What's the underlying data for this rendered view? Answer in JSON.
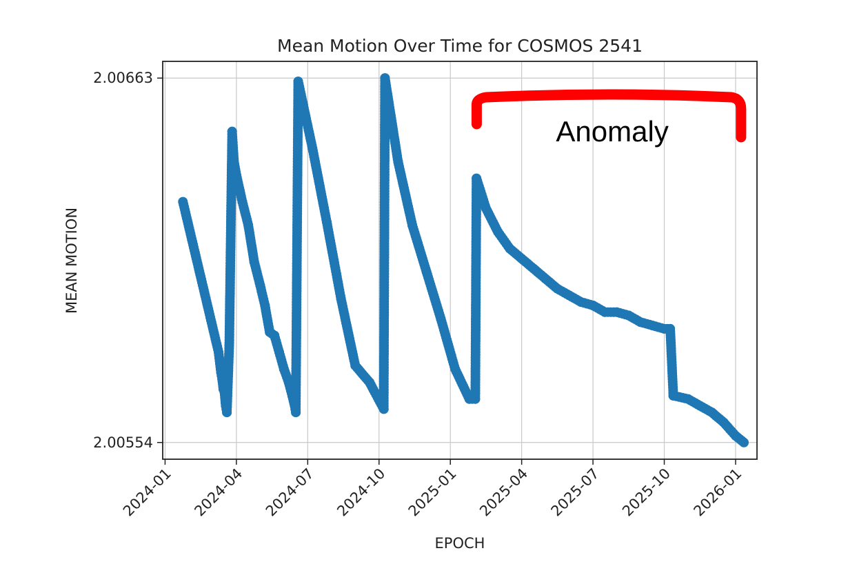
{
  "chart_data": {
    "type": "line",
    "title": "Mean Motion Over Time for COSMOS 2541",
    "xlabel": "EPOCH",
    "ylabel": "MEAN MOTION",
    "x_ticks": [
      "2024-01",
      "2024-04",
      "2024-07",
      "2024-10",
      "2025-01",
      "2025-04",
      "2025-07",
      "2025-10",
      "2026-01"
    ],
    "x_tick_values": [
      0,
      3,
      6,
      9,
      12,
      15,
      18,
      21,
      24
    ],
    "xlim": [
      -0.1,
      24.9
    ],
    "y_ticks": [
      "2.00663",
      "2.00554"
    ],
    "y_tick_values": [
      2.00663,
      2.00554
    ],
    "ylim": [
      2.00549,
      2.00668
    ],
    "grid": true,
    "marker": "circle",
    "series": [
      {
        "name": "MEAN MOTION",
        "color": "#1f77b4",
        "segments": [
          [
            [
              0.75,
              2.00626
            ],
            [
              2.25,
              2.00581
            ]
          ],
          [
            [
              2.25,
              2.00581
            ],
            [
              2.35,
              2.00575
            ],
            [
              2.4,
              2.00573
            ],
            [
              2.45,
              2.0057
            ],
            [
              2.5,
              2.00569
            ],
            [
              2.55,
              2.00565
            ],
            [
              2.6,
              2.00563
            ]
          ],
          [
            [
              2.6,
              2.00563
            ],
            [
              2.7,
              2.00583
            ],
            [
              2.82,
              2.00647
            ],
            [
              2.9,
              2.00638
            ],
            [
              3.0,
              2.00634
            ]
          ],
          [
            [
              3.0,
              2.00634
            ],
            [
              3.25,
              2.00626
            ],
            [
              3.5,
              2.00619
            ],
            [
              3.75,
              2.00608
            ],
            [
              4.0,
              2.00601
            ],
            [
              4.2,
              2.00595
            ],
            [
              4.4,
              2.00587
            ],
            [
              4.6,
              2.00586
            ],
            [
              4.8,
              2.00581
            ],
            [
              5.0,
              2.00576
            ],
            [
              5.2,
              2.00572
            ],
            [
              5.35,
              2.00568
            ],
            [
              5.45,
              2.00565
            ],
            [
              5.5,
              2.00563
            ]
          ],
          [
            [
              5.5,
              2.00563
            ],
            [
              5.6,
              2.00662
            ],
            [
              6.2,
              2.00642
            ],
            [
              6.8,
              2.0062
            ],
            [
              7.4,
              2.00597
            ],
            [
              8.0,
              2.00577
            ],
            [
              8.6,
              2.00572
            ],
            [
              9.2,
              2.00564
            ]
          ],
          [
            [
              9.2,
              2.00564
            ],
            [
              9.25,
              2.00663
            ],
            [
              9.8,
              2.00638
            ],
            [
              10.4,
              2.00619
            ],
            [
              11.0,
              2.00605
            ],
            [
              11.6,
              2.00591
            ],
            [
              12.2,
              2.00576
            ],
            [
              12.8,
              2.00567
            ],
            [
              13.05,
              2.00567
            ]
          ],
          [
            [
              13.05,
              2.00567
            ],
            [
              13.1,
              2.00633
            ],
            [
              13.5,
              2.00624
            ],
            [
              14.0,
              2.00617
            ],
            [
              14.5,
              2.00612
            ],
            [
              15.0,
              2.00609
            ],
            [
              15.5,
              2.00606
            ],
            [
              16.0,
              2.00603
            ],
            [
              16.5,
              2.006
            ],
            [
              17.0,
              2.00598
            ],
            [
              17.5,
              2.00596
            ],
            [
              18.0,
              2.00595
            ],
            [
              18.5,
              2.00593
            ],
            [
              19.0,
              2.00593
            ],
            [
              19.5,
              2.00592
            ],
            [
              20.0,
              2.0059
            ],
            [
              20.5,
              2.00589
            ],
            [
              21.0,
              2.00588
            ],
            [
              21.25,
              2.00588
            ]
          ],
          [
            [
              21.25,
              2.00588
            ],
            [
              21.38,
              2.00568
            ],
            [
              22.0,
              2.00567
            ],
            [
              22.5,
              2.00565
            ],
            [
              23.0,
              2.00563
            ],
            [
              23.5,
              2.0056
            ],
            [
              24.0,
              2.00556
            ],
            [
              24.35,
              2.00554
            ]
          ]
        ]
      }
    ],
    "annotations": [
      {
        "text": "Anomaly",
        "color": "#ff0000",
        "kind": "bracket",
        "x_start": 13.05,
        "x_end": 24.2
      }
    ]
  }
}
